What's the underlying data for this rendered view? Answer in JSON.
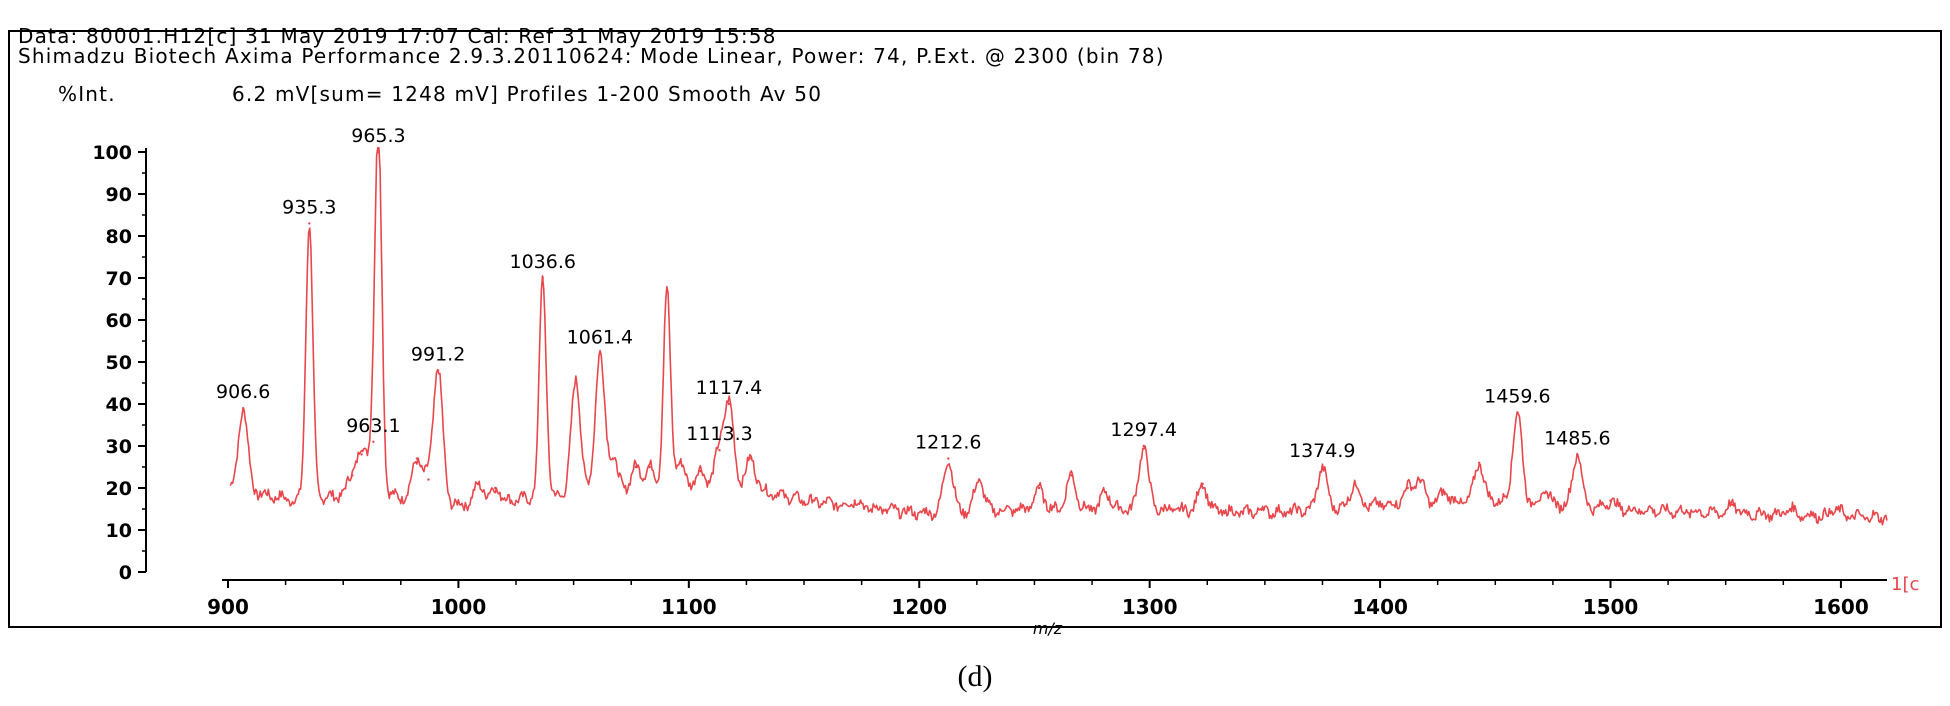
{
  "header": {
    "line1": "Data: 80001.H12[c] 31 May 2019 17:07 Cal: Ref 31 May 2019 15:58",
    "line2": "Shimadzu Biotech Axima Performance 2.9.3.20110624: Mode Linear, Power: 74, P.Ext. @ 2300 (bin 78)",
    "ylabel": "%Int.",
    "info": "6.2 mV[sum= 1248 mV]  Profiles 1-200 Smooth Av 50"
  },
  "caption": "(d)",
  "chart_data": {
    "type": "line",
    "title": "",
    "xlabel": "m/z",
    "ylabel": "%Int.",
    "xlim": [
      900,
      1620
    ],
    "ylim": [
      0,
      100
    ],
    "xticks": [
      900,
      1000,
      1100,
      1200,
      1300,
      1400,
      1500,
      1600
    ],
    "yticks": [
      0,
      10,
      20,
      30,
      40,
      50,
      60,
      70,
      80,
      90,
      100
    ],
    "right_edge_label": "1[c",
    "color": "#e8474c",
    "grid": false,
    "baseline": [
      [
        900,
        20
      ],
      [
        930,
        17
      ],
      [
        960,
        19
      ],
      [
        1000,
        16
      ],
      [
        1040,
        18
      ],
      [
        1080,
        20
      ],
      [
        1120,
        21
      ],
      [
        1150,
        17
      ],
      [
        1200,
        14
      ],
      [
        1250,
        15
      ],
      [
        1300,
        15
      ],
      [
        1350,
        14
      ],
      [
        1400,
        16
      ],
      [
        1450,
        17
      ],
      [
        1500,
        15
      ],
      [
        1550,
        14
      ],
      [
        1620,
        13
      ]
    ],
    "peaks": [
      {
        "x": 906.6,
        "y": 39,
        "label": "906.6"
      },
      {
        "x": 935.3,
        "y": 83,
        "label": "935.3"
      },
      {
        "x": 954,
        "y": 23
      },
      {
        "x": 958,
        "y": 28
      },
      {
        "x": 963.1,
        "y": 31,
        "label": "963.1"
      },
      {
        "x": 965.3,
        "y": 100,
        "label": "965.3"
      },
      {
        "x": 982,
        "y": 27
      },
      {
        "x": 987,
        "y": 22
      },
      {
        "x": 991.2,
        "y": 48,
        "label": "991.2"
      },
      {
        "x": 1009,
        "y": 21
      },
      {
        "x": 1016,
        "y": 20
      },
      {
        "x": 1036.6,
        "y": 70,
        "label": "1036.6"
      },
      {
        "x": 1051,
        "y": 46
      },
      {
        "x": 1061.4,
        "y": 52,
        "label": "1061.4"
      },
      {
        "x": 1067,
        "y": 27
      },
      {
        "x": 1077,
        "y": 25
      },
      {
        "x": 1083,
        "y": 25
      },
      {
        "x": 1090.5,
        "y": 67
      },
      {
        "x": 1096,
        "y": 26
      },
      {
        "x": 1105,
        "y": 24
      },
      {
        "x": 1113.3,
        "y": 29,
        "label": "1113.3"
      },
      {
        "x": 1117.4,
        "y": 40,
        "label": "1117.4"
      },
      {
        "x": 1127,
        "y": 27
      },
      {
        "x": 1172,
        "y": 17
      },
      {
        "x": 1212.6,
        "y": 27,
        "label": "1212.6"
      },
      {
        "x": 1226,
        "y": 22
      },
      {
        "x": 1252,
        "y": 20
      },
      {
        "x": 1266,
        "y": 23
      },
      {
        "x": 1281,
        "y": 19
      },
      {
        "x": 1297.4,
        "y": 30,
        "label": "1297.4"
      },
      {
        "x": 1323,
        "y": 21
      },
      {
        "x": 1349,
        "y": 15
      },
      {
        "x": 1374.9,
        "y": 25,
        "label": "1374.9"
      },
      {
        "x": 1389,
        "y": 21
      },
      {
        "x": 1412,
        "y": 20
      },
      {
        "x": 1417,
        "y": 22
      },
      {
        "x": 1428,
        "y": 19
      },
      {
        "x": 1443,
        "y": 26
      },
      {
        "x": 1459.6,
        "y": 38,
        "label": "1459.6"
      },
      {
        "x": 1472,
        "y": 19
      },
      {
        "x": 1485.6,
        "y": 28,
        "label": "1485.6"
      },
      {
        "x": 1500,
        "y": 17
      },
      {
        "x": 1553,
        "y": 16
      },
      {
        "x": 1578,
        "y": 15
      },
      {
        "x": 1598,
        "y": 15
      }
    ]
  }
}
